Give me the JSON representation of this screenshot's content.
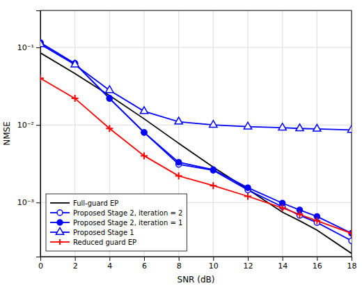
{
  "chart_data": {
    "type": "line",
    "x": [
      0,
      2,
      4,
      6,
      8,
      10,
      12,
      14,
      15,
      16,
      18
    ],
    "series": [
      {
        "name": "Full-guard EP",
        "color": "#000000",
        "marker": "none",
        "values": [
          0.085,
          0.046,
          0.024,
          0.012,
          0.0058,
          0.00285,
          0.00148,
          0.00075,
          0.00058,
          0.00044,
          0.00022
        ]
      },
      {
        "name": "Proposed Stage 2, iteration = 2",
        "color": "#0000FF",
        "marker": "circle-open",
        "values": [
          0.115,
          0.062,
          0.022,
          0.008,
          0.0031,
          0.0026,
          0.00145,
          0.00088,
          0.00068,
          0.00055,
          0.00032
        ]
      },
      {
        "name": "Proposed Stage 2, iteration = 1",
        "color": "#0000FF",
        "marker": "circle",
        "values": [
          0.115,
          0.062,
          0.022,
          0.008,
          0.0033,
          0.00265,
          0.00155,
          0.00098,
          0.0008,
          0.00066,
          0.0004
        ]
      },
      {
        "name": "Proposed Stage 1",
        "color": "#0000FF",
        "marker": "triangle-open",
        "values": [
          0.11,
          0.06,
          0.028,
          0.015,
          0.011,
          0.01,
          0.0095,
          0.0092,
          0.009,
          0.0089,
          0.0086
        ]
      },
      {
        "name": "Reduced guard EP",
        "color": "#FF0000",
        "marker": "plus",
        "values": [
          0.04,
          0.022,
          0.009,
          0.004,
          0.0022,
          0.00165,
          0.0012,
          0.00085,
          0.0007,
          0.00058,
          0.0004
        ]
      }
    ],
    "x_label": "SNR (dB)",
    "y_label": "NMSE",
    "xlim": [
      0,
      18
    ],
    "xticks": [
      0,
      2,
      4,
      6,
      8,
      10,
      12,
      14,
      16,
      18
    ],
    "ylim": [
      0.0002,
      0.3
    ],
    "yticks": [
      {
        "value": 0.001,
        "label": "10⁻³"
      },
      {
        "value": 0.01,
        "label": "10⁻²"
      },
      {
        "value": 0.1,
        "label": "10⁻¹"
      }
    ],
    "log": "y",
    "grid": true,
    "legend": "lower left"
  }
}
